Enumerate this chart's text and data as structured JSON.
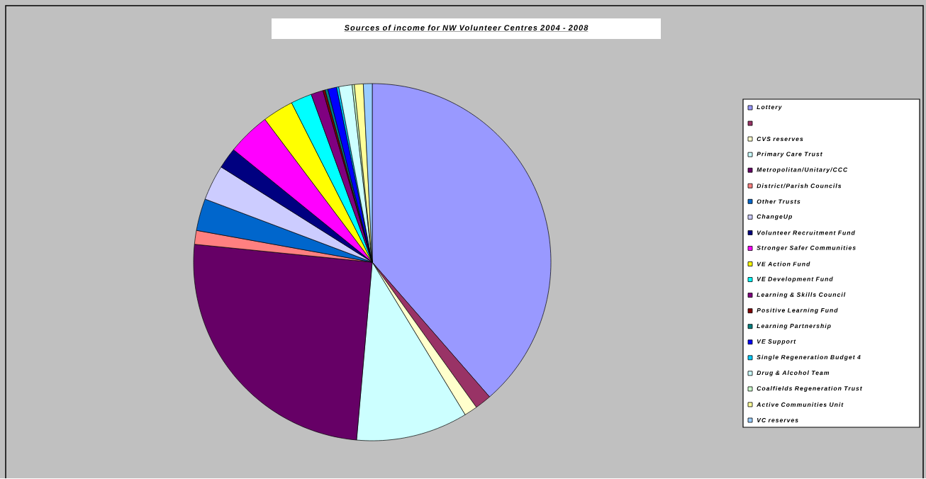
{
  "chart_data": {
    "type": "pie",
    "title": "Sources of income for NW Volunteer Centres 2004 - 2008",
    "legend": "right",
    "categories": [
      "Lottery",
      null,
      "CVS reserves",
      "Primary Care Trust",
      "Metropolitan/Unitary/CCC",
      "District/Parish Councils",
      "Other Trusts",
      "ChangeUp",
      "Volunteer Recruitment Fund",
      "Stronger Safer Communities",
      "VE Action Fund",
      "VE Development Fund",
      "Learning & Skills Council",
      "Positive Learning Fund",
      "Learning Partnership",
      "VE Support",
      "Single Regeneration Budget 4",
      "Drug & Alcohol Team",
      "Coalfields Regeneration Trust",
      "Active Communities Unit",
      "VC reserves"
    ],
    "values": [
      38.6,
      1.5,
      1.2,
      10.1,
      25.2,
      1.25,
      2.9,
      3.2,
      1.9,
      3.9,
      2.8,
      1.9,
      1.1,
      0.2,
      0.25,
      0.8,
      0.2,
      1.2,
      0.2,
      0.8,
      0.8
    ],
    "colors": [
      "#9999ff",
      "#993366",
      "#ffffcc",
      "#ccffff",
      "#660066",
      "#ff8080",
      "#0066cc",
      "#ccccff",
      "#000080",
      "#ff00ff",
      "#ffff00",
      "#00ffff",
      "#800080",
      "#800000",
      "#008080",
      "#0000ff",
      "#00ccff",
      "#ccffff",
      "#ccffcc",
      "#ffff99",
      "#99ccff"
    ]
  }
}
